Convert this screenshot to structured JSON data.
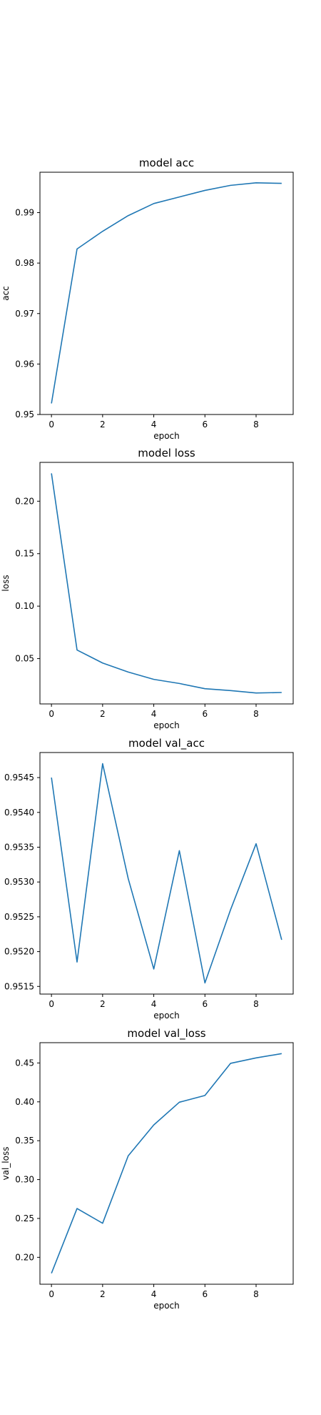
{
  "chart_data": [
    {
      "type": "line",
      "title": "model acc",
      "xlabel": "epoch",
      "ylabel": "acc",
      "x": [
        0,
        1,
        2,
        3,
        4,
        5,
        6,
        7,
        8,
        9
      ],
      "values": [
        0.9522,
        0.9828,
        0.9863,
        0.9894,
        0.9918,
        0.9931,
        0.9944,
        0.9954,
        0.9959,
        0.9958
      ],
      "xticks": [
        0,
        2,
        4,
        6,
        8
      ],
      "yticks": [
        0.95,
        0.96,
        0.97,
        0.98,
        0.99
      ],
      "ytick_labels": [
        "0.95",
        "0.96",
        "0.97",
        "0.98",
        "0.99"
      ],
      "xlim": [
        -0.45,
        9.45
      ],
      "ylim": [
        0.95,
        0.998
      ],
      "color": "#1f77b4",
      "grid": false
    },
    {
      "type": "line",
      "title": "model loss",
      "xlabel": "epoch",
      "ylabel": "loss",
      "x": [
        0,
        1,
        2,
        3,
        4,
        5,
        6,
        7,
        8,
        9
      ],
      "values": [
        0.2265,
        0.0582,
        0.0458,
        0.0372,
        0.0302,
        0.0263,
        0.0213,
        0.0195,
        0.0172,
        0.0177
      ],
      "xticks": [
        0,
        2,
        4,
        6,
        8
      ],
      "yticks": [
        0.05,
        0.1,
        0.15,
        0.2
      ],
      "ytick_labels": [
        "0.05",
        "0.10",
        "0.15",
        "0.20"
      ],
      "xlim": [
        -0.45,
        9.45
      ],
      "ylim": [
        0.0068,
        0.237
      ],
      "color": "#1f77b4",
      "grid": false
    },
    {
      "type": "line",
      "title": "model val_acc",
      "xlabel": "epoch",
      "ylabel": "",
      "x": [
        0,
        1,
        2,
        3,
        4,
        5,
        6,
        7,
        8,
        9
      ],
      "values": [
        0.9545,
        0.95185,
        0.9547,
        0.95305,
        0.95175,
        0.95345,
        0.95155,
        0.9526,
        0.95355,
        0.95217
      ],
      "xticks": [
        0,
        2,
        4,
        6,
        8
      ],
      "yticks": [
        0.9515,
        0.952,
        0.9525,
        0.953,
        0.9535,
        0.954,
        0.9545
      ],
      "ytick_labels": [
        "0.9515",
        "0.9520",
        "0.9525",
        "0.9530",
        "0.9535",
        "0.9540",
        "0.9545"
      ],
      "xlim": [
        -0.45,
        9.45
      ],
      "ylim": [
        0.95139,
        0.95486
      ],
      "color": "#1f77b4",
      "grid": false
    },
    {
      "type": "line",
      "title": "model val_loss",
      "xlabel": "epoch",
      "ylabel": "val_loss",
      "x": [
        0,
        1,
        2,
        3,
        4,
        5,
        6,
        7,
        8,
        9
      ],
      "values": [
        0.1795,
        0.2628,
        0.2438,
        0.3305,
        0.3703,
        0.3995,
        0.4082,
        0.4495,
        0.4565,
        0.462
      ],
      "xticks": [
        0,
        2,
        4,
        6,
        8
      ],
      "yticks": [
        0.2,
        0.25,
        0.3,
        0.35,
        0.4,
        0.45
      ],
      "ytick_labels": [
        "0.20",
        "0.25",
        "0.30",
        "0.35",
        "0.40",
        "0.45"
      ],
      "xlim": [
        -0.45,
        9.45
      ],
      "ylim": [
        0.1654,
        0.4761
      ],
      "color": "#1f77b4",
      "grid": false
    }
  ]
}
